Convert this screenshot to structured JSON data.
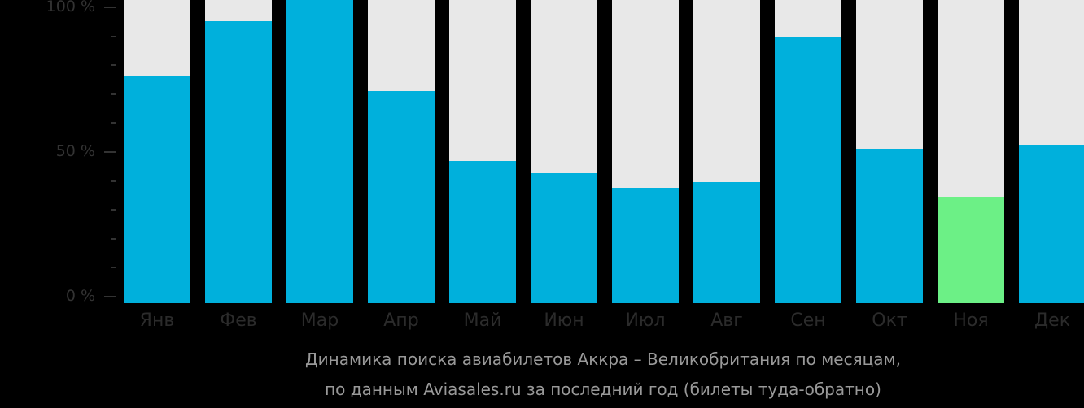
{
  "chart_data": {
    "type": "bar",
    "title": "Динамика поиска авиабилетов Аккра – Великобритания по месяцам,",
    "subtitle": "по данным Aviasales.ru за последний год (билеты туда-обратно)",
    "xlabel": "",
    "ylabel": "",
    "ylim": [
      0,
      100
    ],
    "yticks": [
      "0 %",
      "50 %",
      "100 %"
    ],
    "grid": false,
    "categories": [
      "Янв",
      "Фев",
      "Мар",
      "Апр",
      "Май",
      "Июн",
      "Июл",
      "Авг",
      "Сен",
      "Окт",
      "Ноя",
      "Дек"
    ],
    "values": [
      75,
      93,
      100,
      70,
      47,
      43,
      38,
      40,
      88,
      51,
      35,
      52
    ],
    "highlight_index": 10,
    "colors": {
      "bar": "#00b0dc",
      "highlight": "#6cf086",
      "background_bar": "#e8e8e8"
    }
  },
  "axis": {
    "y_labels": [
      {
        "label": "100 %",
        "value": 100
      },
      {
        "label": "50 %",
        "value": 50
      },
      {
        "label": "0 %",
        "value": 0
      }
    ]
  },
  "caption": {
    "line1": "Динамика поиска авиабилетов Аккра – Великобритания по месяцам,",
    "line2": "по данным Aviasales.ru за последний год (билеты туда-обратно)"
  }
}
